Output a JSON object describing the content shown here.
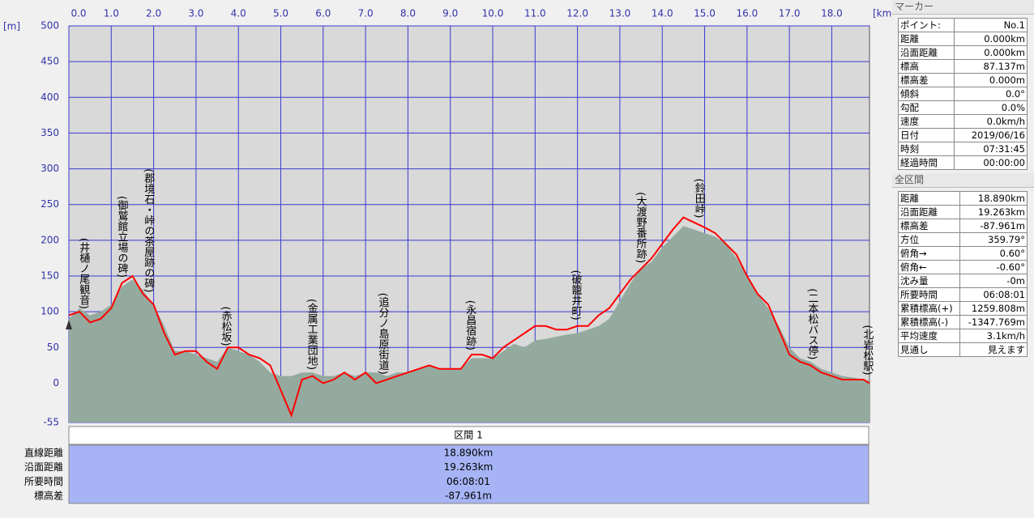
{
  "chart_data": {
    "type": "line",
    "y_unit": "[m]",
    "x_unit": "[km]",
    "x": [
      0,
      0.25,
      0.5,
      0.75,
      1,
      1.25,
      1.5,
      1.75,
      2,
      2.25,
      2.5,
      2.75,
      3,
      3.25,
      3.5,
      3.75,
      4,
      4.25,
      4.5,
      4.75,
      5,
      5.25,
      5.5,
      5.75,
      6,
      6.25,
      6.5,
      6.75,
      7,
      7.25,
      7.5,
      7.75,
      8,
      8.25,
      8.5,
      8.75,
      9,
      9.25,
      9.5,
      9.75,
      10,
      10.25,
      10.5,
      10.75,
      11,
      11.25,
      11.5,
      11.75,
      12,
      12.25,
      12.5,
      12.75,
      13,
      13.25,
      13.5,
      13.75,
      14,
      14.25,
      14.5,
      14.75,
      15,
      15.25,
      15.5,
      15.75,
      16,
      16.25,
      16.5,
      16.75,
      17,
      17.25,
      17.5,
      17.75,
      18,
      18.25,
      18.5,
      18.75,
      18.89
    ],
    "series": [
      {
        "type": "area",
        "color": "#94aa9e",
        "values": [
          90,
          105,
          95,
          100,
          110,
          135,
          145,
          130,
          110,
          80,
          45,
          45,
          40,
          35,
          30,
          50,
          45,
          40,
          30,
          15,
          10,
          10,
          15,
          15,
          10,
          10,
          15,
          10,
          15,
          15,
          10,
          15,
          15,
          20,
          25,
          20,
          20,
          20,
          35,
          35,
          35,
          45,
          55,
          50,
          60,
          62,
          65,
          68,
          70,
          75,
          80,
          90,
          115,
          140,
          160,
          170,
          190,
          205,
          220,
          215,
          210,
          205,
          195,
          175,
          150,
          125,
          105,
          80,
          50,
          35,
          30,
          20,
          15,
          10,
          8,
          5,
          3
        ]
      },
      {
        "type": "line",
        "color": "#ff0000",
        "values": [
          95,
          100,
          85,
          90,
          105,
          140,
          150,
          125,
          110,
          70,
          40,
          45,
          45,
          30,
          20,
          50,
          50,
          40,
          35,
          25,
          -10,
          -45,
          5,
          10,
          0,
          5,
          15,
          5,
          15,
          0,
          5,
          10,
          15,
          20,
          25,
          20,
          20,
          20,
          40,
          40,
          35,
          50,
          60,
          70,
          80,
          80,
          75,
          75,
          80,
          80,
          95,
          105,
          125,
          145,
          160,
          175,
          195,
          215,
          232,
          225,
          218,
          210,
          195,
          180,
          150,
          125,
          110,
          75,
          40,
          30,
          25,
          15,
          10,
          5,
          5,
          5,
          0
        ]
      }
    ],
    "xlim": [
      0,
      18.89
    ],
    "xticks": [
      {
        "value": 0,
        "label": "0.0"
      },
      {
        "value": 1,
        "label": "1.0"
      },
      {
        "value": 2,
        "label": "2.0"
      },
      {
        "value": 3,
        "label": "3.0"
      },
      {
        "value": 4,
        "label": "4.0"
      },
      {
        "value": 5,
        "label": "5.0"
      },
      {
        "value": 6,
        "label": "6.0"
      },
      {
        "value": 7,
        "label": "7.0"
      },
      {
        "value": 8,
        "label": "8.0"
      },
      {
        "value": 9,
        "label": "9.0"
      },
      {
        "value": 10,
        "label": "10.0"
      },
      {
        "value": 11,
        "label": "11.0"
      },
      {
        "value": 12,
        "label": "12.0"
      },
      {
        "value": 13,
        "label": "13.0"
      },
      {
        "value": 14,
        "label": "14.0"
      },
      {
        "value": 15,
        "label": "15.0"
      },
      {
        "value": 16,
        "label": "16.0"
      },
      {
        "value": 17,
        "label": "17.0"
      },
      {
        "value": 18,
        "label": "18.0"
      }
    ],
    "ylim": [
      -55,
      500
    ],
    "yticks": [
      -55,
      0,
      50,
      100,
      150,
      200,
      250,
      300,
      350,
      400,
      450,
      500
    ],
    "grid": true,
    "annotations": [
      {
        "x": 0.34,
        "label": "(井樋ノ尾観音)"
      },
      {
        "x": 1.24,
        "label": "(御鷲館立場の碑)"
      },
      {
        "x": 1.87,
        "label": "(郡境石・峠の茶屋跡の碑)"
      },
      {
        "x": 3.69,
        "label": "(赤松坂)"
      },
      {
        "x": 5.72,
        "label": "(金属工業団地)"
      },
      {
        "x": 7.4,
        "label": "(追分ノ島原街道)"
      },
      {
        "x": 9.46,
        "label": "(永昌宿跡)"
      },
      {
        "x": 11.95,
        "label": "(破籠井町)"
      },
      {
        "x": 13.48,
        "label": "(大渡野番所跡)"
      },
      {
        "x": 14.86,
        "label": "(鈴田峠)"
      },
      {
        "x": 17.53,
        "label": "(二本松バス停)"
      },
      {
        "x": 18.83,
        "label": "(北岩松駅)"
      }
    ]
  },
  "section_table": {
    "header": "区間 1",
    "rows": [
      [
        "直線距離",
        "18.890km"
      ],
      [
        "沿面距離",
        "19.263km"
      ],
      [
        "所要時間",
        "06:08:01"
      ],
      [
        "標高差",
        "-87.961m"
      ]
    ]
  },
  "marker_panel": {
    "title": "マーカー",
    "rows": [
      [
        "ポイント:",
        "No.1"
      ],
      [
        "距離",
        "0.000km"
      ],
      [
        "沿面距離",
        "0.000km"
      ],
      [
        "標高",
        "87.137m"
      ],
      [
        "標高差",
        "0.000m"
      ],
      [
        "傾斜",
        "0.0°"
      ],
      [
        "勾配",
        "0.0%"
      ],
      [
        "速度",
        "0.0km/h"
      ],
      [
        "日付",
        "2019/06/16"
      ],
      [
        "時刻",
        "07:31:45"
      ],
      [
        "経過時間",
        "00:00:00"
      ]
    ]
  },
  "total_panel": {
    "title": "全区間",
    "rows": [
      [
        "距離",
        "18.890km"
      ],
      [
        "沿面距離",
        "19.263km"
      ],
      [
        "標高差",
        "-87.961m"
      ],
      [
        "方位",
        "359.79°"
      ],
      [
        "俯角→",
        "0.60°"
      ],
      [
        "俯角←",
        "-0.60°"
      ],
      [
        "沈み量",
        "-0m"
      ],
      [
        "所要時間",
        "06:08:01"
      ],
      [
        "累積標高(+)",
        "1259.808m"
      ],
      [
        "累積標高(-)",
        "-1347.769m"
      ],
      [
        "平均速度",
        "3.1km/h"
      ],
      [
        "見通し",
        "見えます"
      ]
    ]
  }
}
